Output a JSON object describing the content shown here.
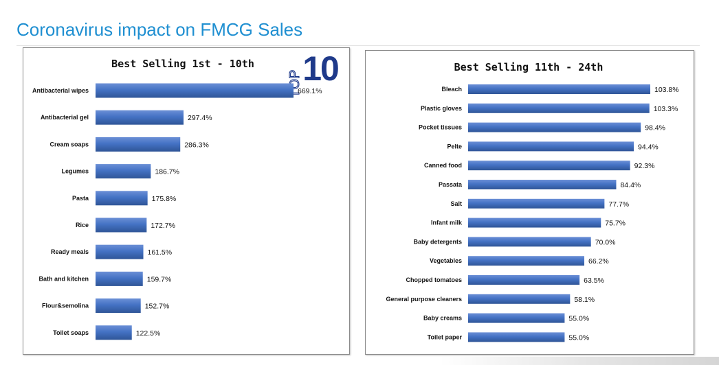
{
  "page": {
    "title": "Coronavirus impact on FMCG Sales"
  },
  "badge": {
    "word": "TOP",
    "number": "10"
  },
  "colors": {
    "bar": "#4472c4",
    "bar_dark": "#2f5597",
    "title": "#1f8fd1",
    "badge": "#1f3a8a"
  },
  "chart_data": [
    {
      "type": "bar",
      "orientation": "horizontal",
      "title": "Best Selling 1st - 10th",
      "categories": [
        "Antibacterial wipes",
        "Antibacterial gel",
        "Cream soaps",
        "Legumes",
        "Pasta",
        "Rice",
        "Ready meals",
        "Bath and kitchen",
        "Flour&semolina",
        "Toilet soaps"
      ],
      "values": [
        669.1,
        297.4,
        286.3,
        186.7,
        175.8,
        172.7,
        161.5,
        159.7,
        152.7,
        122.5
      ],
      "labels": [
        "669.1%",
        "297.4%",
        "286.3%",
        "186.7%",
        "175.8%",
        "172.7%",
        "161.5%",
        "159.7%",
        "152.7%",
        "122.5%"
      ],
      "xlim": [
        0,
        669.1
      ],
      "grid": false,
      "legend": "none"
    },
    {
      "type": "bar",
      "orientation": "horizontal",
      "title": "Best Selling 11th - 24th",
      "categories": [
        "Bleach",
        "Plastic gloves",
        "Pocket tissues",
        "Pelte",
        "Canned food",
        "Passata",
        "Salt",
        "Infant milk",
        "Baby detergents",
        "Vegetables",
        "Chopped tomatoes",
        "General purpose cleaners",
        "Baby creams",
        "Toilet paper"
      ],
      "values": [
        103.8,
        103.3,
        98.4,
        94.4,
        92.3,
        84.4,
        77.7,
        75.7,
        70.0,
        66.2,
        63.5,
        58.1,
        55.0,
        55.0
      ],
      "labels": [
        "103.8%",
        "103.3%",
        "98.4%",
        "94.4%",
        "92.3%",
        "84.4%",
        "77.7%",
        "75.7%",
        "70.0%",
        "66.2%",
        "63.5%",
        "58.1%",
        "55.0%",
        "55.0%"
      ],
      "xlim": [
        0,
        103.8
      ],
      "grid": false,
      "legend": "none"
    }
  ]
}
